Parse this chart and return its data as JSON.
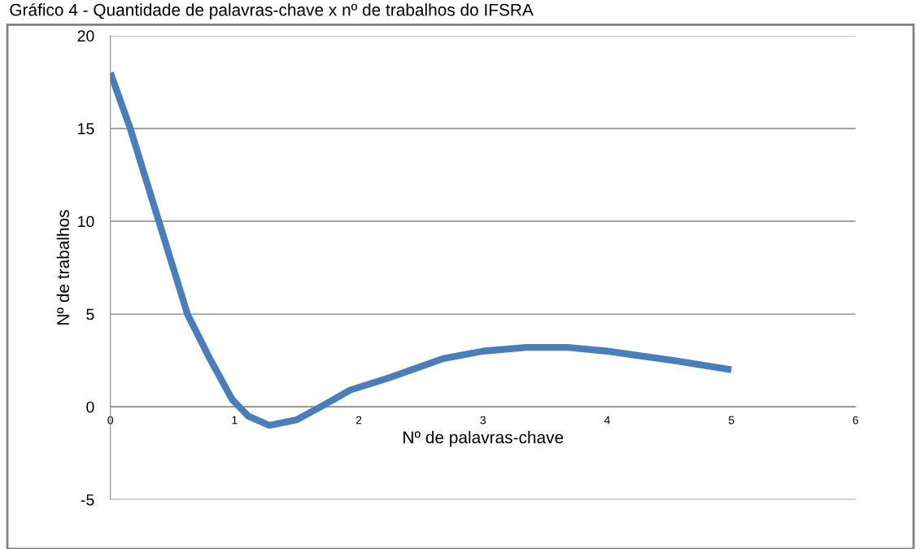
{
  "chart_data": {
    "type": "line",
    "title": "Gráfico 4 - Quantidade de palavras-chave x nº de trabalhos do IFSRA",
    "xlabel": "Nº de palavras-chave",
    "ylabel": "Nº de trabalhos",
    "x": [
      0,
      0.16,
      0.39,
      0.62,
      0.8,
      0.98,
      1.11,
      1.28,
      1.5,
      1.72,
      1.93,
      2.26,
      2.68,
      3,
      3.35,
      3.68,
      4,
      4.53,
      5
    ],
    "series": [
      {
        "color": "#4a7ebb",
        "values": [
          18,
          15,
          10,
          5,
          2.6,
          0.4,
          -0.5,
          -1,
          -0.7,
          0.1,
          0.9,
          1.6,
          2.6,
          3,
          3.2,
          3.2,
          3,
          2.5,
          2
        ]
      }
    ],
    "xlim": [
      0,
      6
    ],
    "xticks": [
      0,
      1,
      2,
      3,
      4,
      5,
      6
    ],
    "ylim": [
      -5,
      20
    ],
    "yticks": [
      -5,
      0,
      5,
      10,
      15,
      20
    ],
    "grid": "y",
    "marker": "none",
    "line_style": "solid"
  }
}
